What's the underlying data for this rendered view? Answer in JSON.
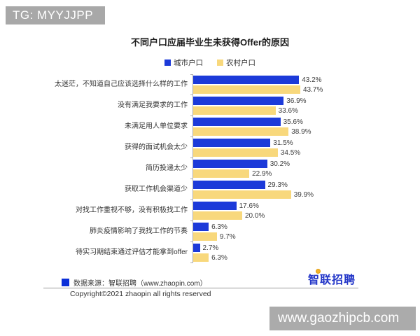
{
  "badges": {
    "tg": "TG: MYYJJPP",
    "watermark": "www.gaozhipcb.com"
  },
  "chart_data": {
    "type": "bar",
    "orientation": "horizontal",
    "title": "不同户口应届毕业生未获得Offer的原因",
    "legend_position": "top",
    "grid": false,
    "value_suffix": "%",
    "xlim": [
      0,
      50
    ],
    "categories": [
      "太迷茫，不知道自己应该选择什么样的工作",
      "没有满足我要求的工作",
      "未满足用人单位要求",
      "获得的面试机会太少",
      "简历投递太少",
      "获取工作机会渠道少",
      "对找工作重视不够，没有积极找工作",
      "肺炎疫情影响了我找工作的节奏",
      "待实习期结束通过评估才能拿到offer"
    ],
    "series": [
      {
        "name": "城市户口",
        "color": "#1c3ad9",
        "values": [
          43.2,
          36.9,
          35.6,
          31.5,
          30.2,
          29.3,
          17.6,
          6.3,
          2.7
        ]
      },
      {
        "name": "农村户口",
        "color": "#f8d87c",
        "values": [
          43.7,
          33.6,
          38.9,
          34.5,
          22.9,
          39.9,
          20.0,
          9.7,
          6.3
        ]
      }
    ]
  },
  "footer": {
    "source": "数据来源：智联招聘（www.zhaopin.com）",
    "copyright": "Copyright©2021 zhaopin all rights reserved",
    "logo": "智联招聘"
  },
  "colors": {
    "urban_bar": "#1c3ad9",
    "rural_bar": "#f8d87c",
    "badge_gray": "#a8a8a8",
    "logo_blue": "#2336c8",
    "logo_dot": "#f3b229"
  }
}
